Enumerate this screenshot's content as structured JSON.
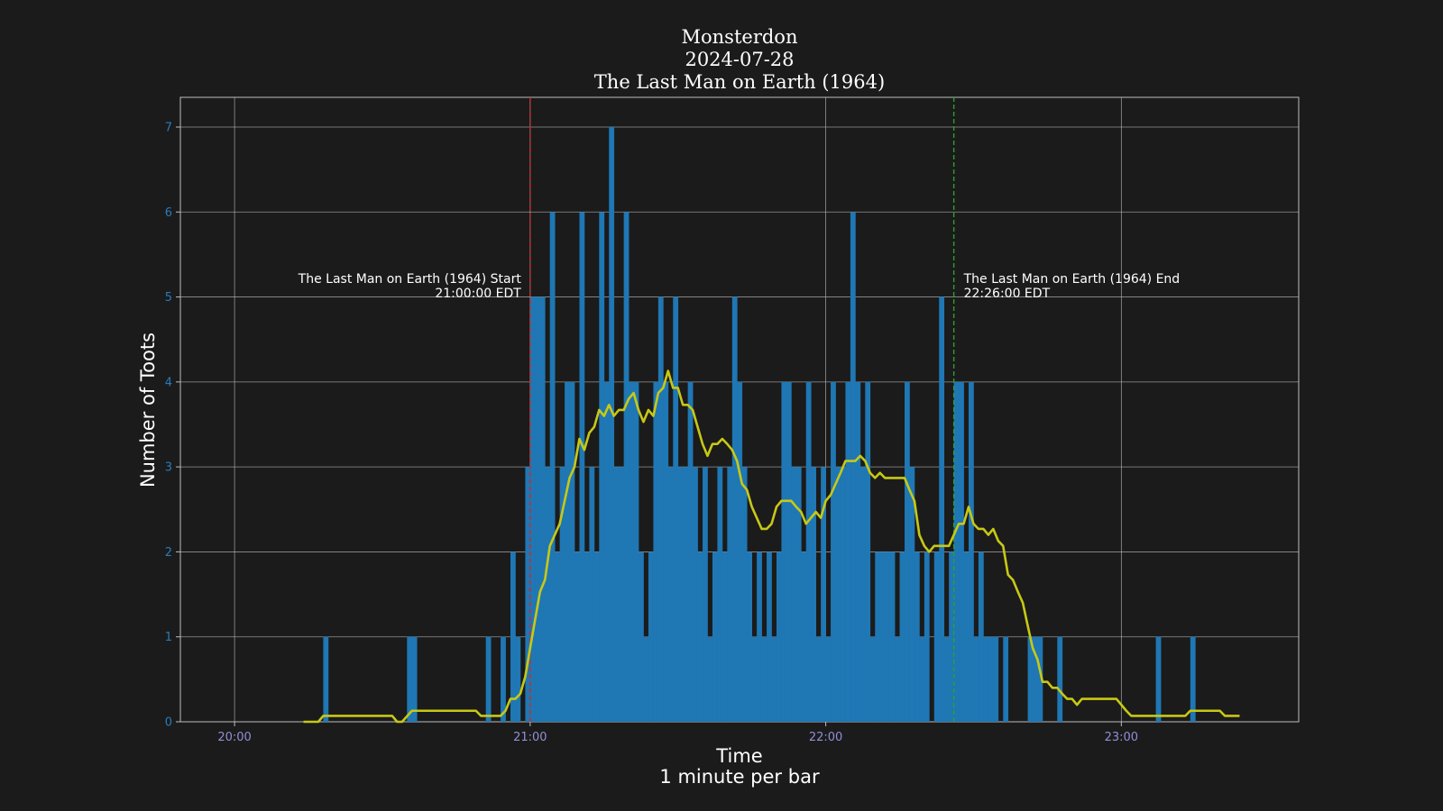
{
  "chart_data": {
    "type": "bar",
    "title": [
      "Monsterdon",
      "2024-07-28",
      "The Last Man on Earth (1964)"
    ],
    "xlabel": [
      "Time",
      "1 minute per bar"
    ],
    "ylabel": "Number of Toots",
    "x_ticks": [
      "20:00",
      "21:00",
      "22:00",
      "23:00"
    ],
    "x_range": [
      "19:49",
      "23:36"
    ],
    "y_ticks": [
      "0",
      "1",
      "2",
      "3",
      "4",
      "5",
      "6",
      "7"
    ],
    "ylim": [
      0,
      7.35
    ],
    "grid": true,
    "bar_color": "#1f77b4",
    "line_color": "#c8c815",
    "start_line_color": "#d62728",
    "end_line_color": "#2ca02c",
    "annotations": {
      "start": {
        "time": "21:00",
        "line1": "The Last Man on Earth (1964) Start",
        "line2": "21:00:00 EDT"
      },
      "end": {
        "time": "22:26",
        "line1": "The Last Man on Earth (1964) End",
        "line2": "22:26:00 EDT"
      }
    },
    "series": [
      {
        "type": "bar",
        "points": [
          [
            "20:18",
            1
          ],
          [
            "20:35",
            1
          ],
          [
            "20:36",
            1
          ],
          [
            "20:51",
            1
          ],
          [
            "20:54",
            1
          ],
          [
            "20:56",
            2
          ],
          [
            "20:57",
            1
          ],
          [
            "20:59",
            3
          ],
          [
            "21:00",
            5
          ],
          [
            "21:01",
            5
          ],
          [
            "21:02",
            5
          ],
          [
            "21:03",
            3
          ],
          [
            "21:04",
            6
          ],
          [
            "21:05",
            2
          ],
          [
            "21:06",
            3
          ],
          [
            "21:07",
            4
          ],
          [
            "21:08",
            4
          ],
          [
            "21:09",
            2
          ],
          [
            "21:10",
            6
          ],
          [
            "21:11",
            2
          ],
          [
            "21:12",
            3
          ],
          [
            "21:13",
            2
          ],
          [
            "21:14",
            6
          ],
          [
            "21:15",
            4
          ],
          [
            "21:16",
            7
          ],
          [
            "21:17",
            3
          ],
          [
            "21:18",
            3
          ],
          [
            "21:19",
            6
          ],
          [
            "21:20",
            4
          ],
          [
            "21:21",
            4
          ],
          [
            "21:22",
            2
          ],
          [
            "21:23",
            1
          ],
          [
            "21:24",
            2
          ],
          [
            "21:25",
            4
          ],
          [
            "21:26",
            5
          ],
          [
            "21:27",
            4
          ],
          [
            "21:28",
            3
          ],
          [
            "21:29",
            5
          ],
          [
            "21:30",
            3
          ],
          [
            "21:31",
            3
          ],
          [
            "21:32",
            4
          ],
          [
            "21:33",
            3
          ],
          [
            "21:34",
            2
          ],
          [
            "21:35",
            3
          ],
          [
            "21:36",
            1
          ],
          [
            "21:37",
            2
          ],
          [
            "21:38",
            3
          ],
          [
            "21:39",
            2
          ],
          [
            "21:40",
            3
          ],
          [
            "21:41",
            5
          ],
          [
            "21:42",
            4
          ],
          [
            "21:43",
            3
          ],
          [
            "21:44",
            2
          ],
          [
            "21:45",
            1
          ],
          [
            "21:46",
            2
          ],
          [
            "21:47",
            1
          ],
          [
            "21:48",
            2
          ],
          [
            "21:49",
            1
          ],
          [
            "21:50",
            2
          ],
          [
            "21:51",
            4
          ],
          [
            "21:52",
            4
          ],
          [
            "21:53",
            3
          ],
          [
            "21:54",
            3
          ],
          [
            "21:55",
            2
          ],
          [
            "21:56",
            4
          ],
          [
            "21:57",
            3
          ],
          [
            "21:58",
            1
          ],
          [
            "21:59",
            3
          ],
          [
            "22:00",
            1
          ],
          [
            "22:01",
            4
          ],
          [
            "22:02",
            3
          ],
          [
            "22:03",
            3
          ],
          [
            "22:04",
            4
          ],
          [
            "22:05",
            6
          ],
          [
            "22:06",
            4
          ],
          [
            "22:07",
            3
          ],
          [
            "22:08",
            4
          ],
          [
            "22:09",
            1
          ],
          [
            "22:10",
            2
          ],
          [
            "22:11",
            2
          ],
          [
            "22:12",
            2
          ],
          [
            "22:13",
            2
          ],
          [
            "22:14",
            1
          ],
          [
            "22:15",
            2
          ],
          [
            "22:16",
            4
          ],
          [
            "22:17",
            3
          ],
          [
            "22:18",
            2
          ],
          [
            "22:19",
            1
          ],
          [
            "22:20",
            2
          ],
          [
            "22:21",
            0
          ],
          [
            "22:22",
            2
          ],
          [
            "22:23",
            5
          ],
          [
            "22:24",
            1
          ],
          [
            "22:25",
            2
          ],
          [
            "22:26",
            4
          ],
          [
            "22:27",
            4
          ],
          [
            "22:28",
            2
          ],
          [
            "22:29",
            4
          ],
          [
            "22:30",
            1
          ],
          [
            "22:31",
            2
          ],
          [
            "22:32",
            1
          ],
          [
            "22:33",
            1
          ],
          [
            "22:34",
            1
          ],
          [
            "22:35",
            0
          ],
          [
            "22:36",
            1
          ],
          [
            "22:41",
            1
          ],
          [
            "22:42",
            1
          ],
          [
            "22:43",
            1
          ],
          [
            "22:47",
            1
          ],
          [
            "23:07",
            1
          ],
          [
            "23:14",
            1
          ]
        ]
      },
      {
        "type": "line",
        "points": [
          [
            "20:14",
            0
          ],
          [
            "20:17",
            0
          ],
          [
            "20:18",
            0.07
          ],
          [
            "20:25",
            0.07
          ],
          [
            "20:32",
            0.07
          ],
          [
            "20:33",
            0
          ],
          [
            "20:34",
            0
          ],
          [
            "20:36",
            0.13
          ],
          [
            "20:43",
            0.13
          ],
          [
            "20:49",
            0.13
          ],
          [
            "20:50",
            0.07
          ],
          [
            "20:54",
            0.07
          ],
          [
            "20:55",
            0.13
          ],
          [
            "20:56",
            0.27
          ],
          [
            "20:57",
            0.27
          ],
          [
            "20:58",
            0.33
          ],
          [
            "20:59",
            0.53
          ],
          [
            "21:00",
            0.87
          ],
          [
            "21:01",
            1.2
          ],
          [
            "21:02",
            1.53
          ],
          [
            "21:03",
            1.67
          ],
          [
            "21:04",
            2.07
          ],
          [
            "21:05",
            2.2
          ],
          [
            "21:06",
            2.33
          ],
          [
            "21:07",
            2.6
          ],
          [
            "21:08",
            2.87
          ],
          [
            "21:09",
            3.0
          ],
          [
            "21:10",
            3.33
          ],
          [
            "21:11",
            3.2
          ],
          [
            "21:12",
            3.4
          ],
          [
            "21:13",
            3.47
          ],
          [
            "21:14",
            3.67
          ],
          [
            "21:15",
            3.6
          ],
          [
            "21:16",
            3.73
          ],
          [
            "21:17",
            3.6
          ],
          [
            "21:18",
            3.67
          ],
          [
            "21:19",
            3.67
          ],
          [
            "21:20",
            3.8
          ],
          [
            "21:21",
            3.87
          ],
          [
            "21:22",
            3.67
          ],
          [
            "21:23",
            3.53
          ],
          [
            "21:24",
            3.67
          ],
          [
            "21:25",
            3.6
          ],
          [
            "21:26",
            3.87
          ],
          [
            "21:27",
            3.93
          ],
          [
            "21:28",
            4.13
          ],
          [
            "21:29",
            3.93
          ],
          [
            "21:30",
            3.93
          ],
          [
            "21:31",
            3.73
          ],
          [
            "21:32",
            3.73
          ],
          [
            "21:33",
            3.67
          ],
          [
            "21:34",
            3.47
          ],
          [
            "21:35",
            3.27
          ],
          [
            "21:36",
            3.13
          ],
          [
            "21:37",
            3.27
          ],
          [
            "21:38",
            3.27
          ],
          [
            "21:39",
            3.33
          ],
          [
            "21:40",
            3.27
          ],
          [
            "21:41",
            3.2
          ],
          [
            "21:42",
            3.07
          ],
          [
            "21:43",
            2.8
          ],
          [
            "21:44",
            2.73
          ],
          [
            "21:45",
            2.53
          ],
          [
            "21:46",
            2.4
          ],
          [
            "21:47",
            2.27
          ],
          [
            "21:48",
            2.27
          ],
          [
            "21:49",
            2.33
          ],
          [
            "21:50",
            2.53
          ],
          [
            "21:51",
            2.6
          ],
          [
            "21:52",
            2.6
          ],
          [
            "21:53",
            2.6
          ],
          [
            "21:54",
            2.53
          ],
          [
            "21:55",
            2.47
          ],
          [
            "21:56",
            2.33
          ],
          [
            "21:57",
            2.4
          ],
          [
            "21:58",
            2.47
          ],
          [
            "21:59",
            2.4
          ],
          [
            "22:00",
            2.6
          ],
          [
            "22:01",
            2.67
          ],
          [
            "22:02",
            2.8
          ],
          [
            "22:03",
            2.93
          ],
          [
            "22:04",
            3.07
          ],
          [
            "22:05",
            3.07
          ],
          [
            "22:06",
            3.07
          ],
          [
            "22:07",
            3.13
          ],
          [
            "22:08",
            3.07
          ],
          [
            "22:09",
            2.93
          ],
          [
            "22:10",
            2.87
          ],
          [
            "22:11",
            2.93
          ],
          [
            "22:12",
            2.87
          ],
          [
            "22:13",
            2.87
          ],
          [
            "22:14",
            2.87
          ],
          [
            "22:15",
            2.87
          ],
          [
            "22:16",
            2.87
          ],
          [
            "22:17",
            2.73
          ],
          [
            "22:18",
            2.6
          ],
          [
            "22:19",
            2.2
          ],
          [
            "22:20",
            2.07
          ],
          [
            "22:21",
            2.0
          ],
          [
            "22:22",
            2.07
          ],
          [
            "22:23",
            2.07
          ],
          [
            "22:24",
            2.07
          ],
          [
            "22:25",
            2.07
          ],
          [
            "22:26",
            2.2
          ],
          [
            "22:27",
            2.33
          ],
          [
            "22:28",
            2.33
          ],
          [
            "22:29",
            2.53
          ],
          [
            "22:30",
            2.33
          ],
          [
            "22:31",
            2.27
          ],
          [
            "22:32",
            2.27
          ],
          [
            "22:33",
            2.2
          ],
          [
            "22:34",
            2.27
          ],
          [
            "22:35",
            2.13
          ],
          [
            "22:36",
            2.07
          ],
          [
            "22:37",
            1.73
          ],
          [
            "22:38",
            1.67
          ],
          [
            "22:39",
            1.53
          ],
          [
            "22:40",
            1.4
          ],
          [
            "22:41",
            1.13
          ],
          [
            "22:42",
            0.87
          ],
          [
            "22:43",
            0.73
          ],
          [
            "22:44",
            0.47
          ],
          [
            "22:45",
            0.47
          ],
          [
            "22:46",
            0.4
          ],
          [
            "22:47",
            0.4
          ],
          [
            "22:48",
            0.33
          ],
          [
            "22:49",
            0.27
          ],
          [
            "22:50",
            0.27
          ],
          [
            "22:51",
            0.2
          ],
          [
            "22:52",
            0.27
          ],
          [
            "22:55",
            0.27
          ],
          [
            "22:59",
            0.27
          ],
          [
            "23:00",
            0.2
          ],
          [
            "23:01",
            0.13
          ],
          [
            "23:02",
            0.07
          ],
          [
            "23:07",
            0.07
          ],
          [
            "23:13",
            0.07
          ],
          [
            "23:14",
            0.13
          ],
          [
            "23:20",
            0.13
          ],
          [
            "23:21",
            0.07
          ],
          [
            "23:24",
            0.07
          ]
        ]
      }
    ]
  }
}
